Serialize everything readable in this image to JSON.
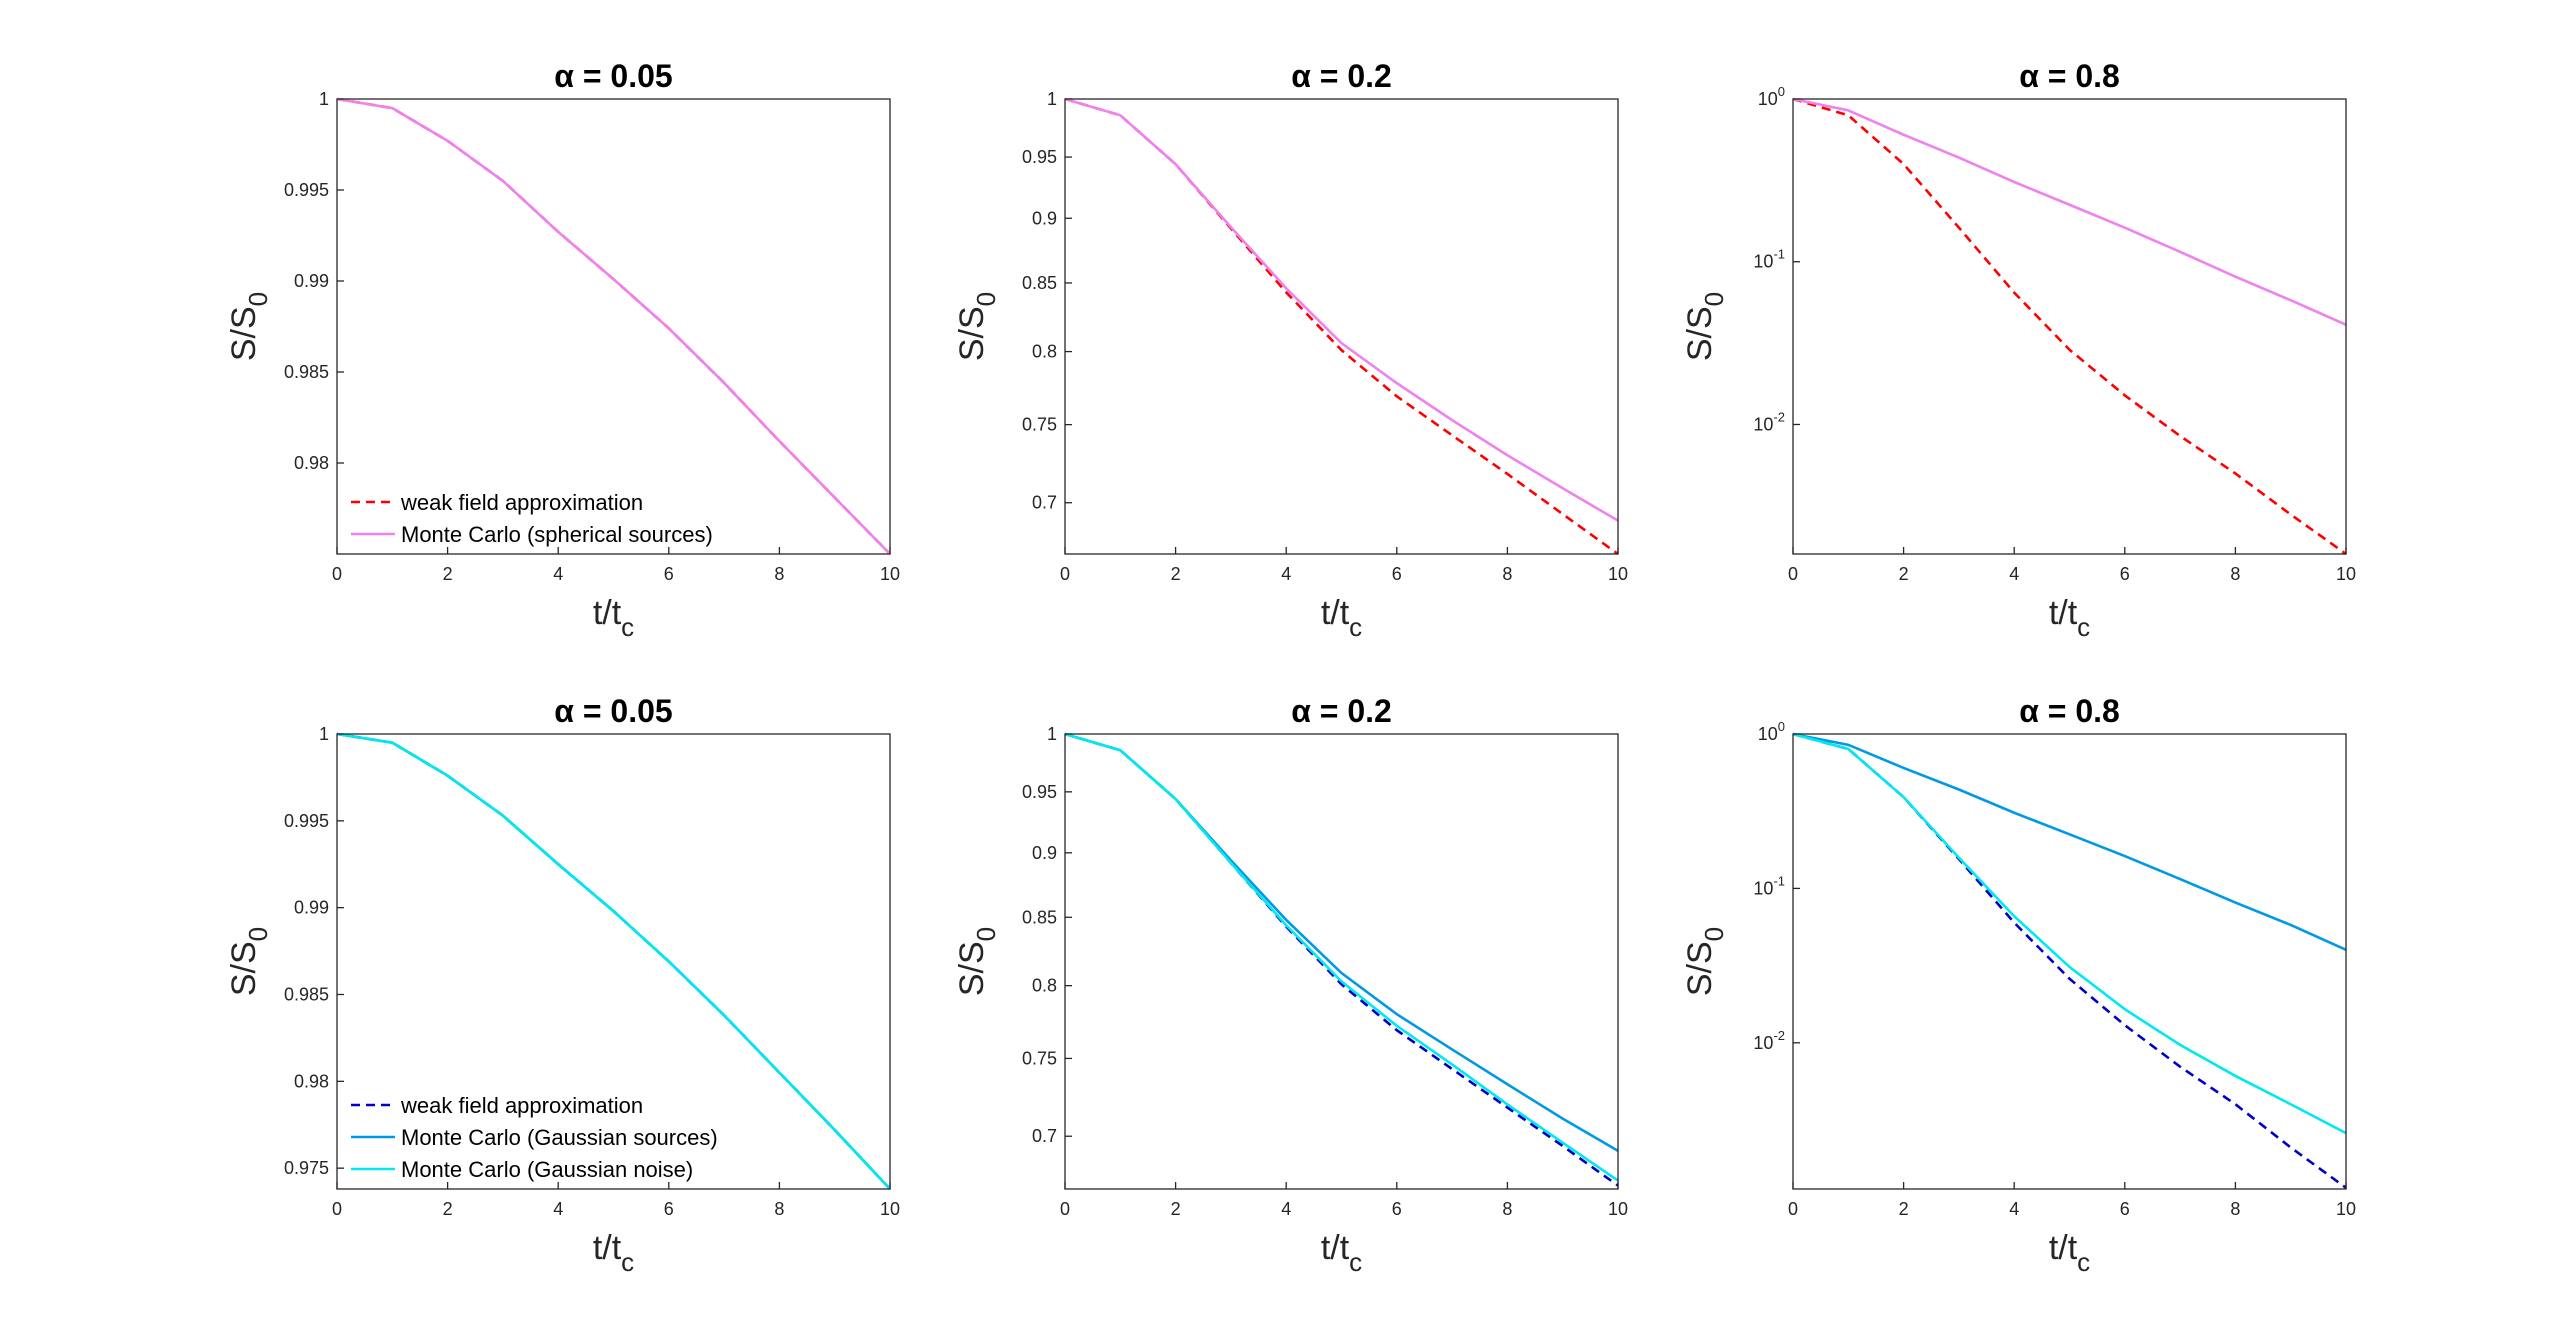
{
  "chart_data": [
    {
      "type": "line",
      "title": "α = 0.05",
      "xlabel": "t/t",
      "xlabel_subscript": "c",
      "ylabel": "S/S",
      "ylabel_subscript": "0",
      "x": [
        0,
        1,
        2,
        3,
        4,
        5,
        6,
        7,
        8,
        9,
        10
      ],
      "xlim": [
        0,
        10
      ],
      "xticks": [
        0,
        2,
        4,
        6,
        8,
        10
      ],
      "ylim": [
        0.975,
        1
      ],
      "yticks": [
        0.98,
        0.985,
        0.99,
        0.995,
        1
      ],
      "log_y": false,
      "legend": "lower left",
      "series": [
        {
          "name": "weak field approximation",
          "color": "#ff0000",
          "dash": true,
          "values": [
            1,
            0.9995,
            0.9977,
            0.9955,
            0.9927,
            0.9901,
            0.9874,
            0.9844,
            0.9812,
            0.9781,
            0.975
          ]
        },
        {
          "name": "Monte Carlo (spherical sources)",
          "color": "#ee82ee",
          "dash": false,
          "values": [
            1,
            0.9995,
            0.9977,
            0.9955,
            0.9927,
            0.9901,
            0.9874,
            0.9844,
            0.9812,
            0.9781,
            0.975
          ]
        }
      ]
    },
    {
      "type": "line",
      "title": "α = 0.2",
      "xlabel": "t/t",
      "xlabel_subscript": "c",
      "ylabel": "S/S",
      "ylabel_subscript": "0",
      "x": [
        0,
        1,
        2,
        3,
        4,
        5,
        6,
        7,
        8,
        9,
        10
      ],
      "xlim": [
        0,
        10
      ],
      "xticks": [
        0,
        2,
        4,
        6,
        8,
        10
      ],
      "ylim": [
        0.669,
        1
      ],
      "yticks": [
        0.7,
        0.75,
        0.8,
        0.85,
        0.9,
        0.95,
        1
      ],
      "log_y": true,
      "series": [
        {
          "color": "#ff0000",
          "dash": true,
          "values": [
            1,
            0.9857,
            0.944,
            0.892,
            0.843,
            0.801,
            0.769,
            0.743,
            0.718,
            0.693,
            0.669
          ]
        },
        {
          "color": "#ee82ee",
          "dash": false,
          "values": [
            1,
            0.9857,
            0.944,
            0.893,
            0.846,
            0.806,
            0.778,
            0.753,
            0.73,
            0.709,
            0.689
          ]
        }
      ]
    },
    {
      "type": "line",
      "title": "α = 0.8",
      "xlabel": "t/t",
      "xlabel_subscript": "c",
      "ylabel": "S/S",
      "ylabel_subscript": "0",
      "x": [
        0,
        1,
        2,
        3,
        4,
        5,
        6,
        7,
        8,
        9,
        10
      ],
      "xlim": [
        0,
        10
      ],
      "xticks": [
        0,
        2,
        4,
        6,
        8,
        10
      ],
      "ylim": [
        0.0016,
        1
      ],
      "yticks": [
        {
          "value": 0.01,
          "label": "10",
          "exponent": "-2"
        },
        {
          "value": 0.1,
          "label": "10",
          "exponent": "-1"
        },
        {
          "value": 1,
          "label": "10",
          "exponent": "0"
        }
      ],
      "log_y": true,
      "series": [
        {
          "color": "#ff0000",
          "dash": true,
          "values": [
            1,
            0.794,
            0.398,
            0.162,
            0.0646,
            0.0288,
            0.0151,
            0.0085,
            0.005,
            0.0028,
            0.0016
          ]
        },
        {
          "color": "#ee82ee",
          "dash": false,
          "values": [
            1,
            0.851,
            0.603,
            0.437,
            0.309,
            0.224,
            0.162,
            0.115,
            0.081,
            0.058,
            0.041
          ]
        }
      ]
    },
    {
      "type": "line",
      "title": "α = 0.05",
      "xlabel": "t/t",
      "xlabel_subscript": "c",
      "ylabel": "S/S",
      "ylabel_subscript": "0",
      "x": [
        0,
        1,
        2,
        3,
        4,
        5,
        6,
        7,
        8,
        9,
        10
      ],
      "xlim": [
        0,
        10
      ],
      "xticks": [
        0,
        2,
        4,
        6,
        8,
        10
      ],
      "ylim": [
        0.9738,
        1
      ],
      "yticks": [
        0.975,
        0.98,
        0.985,
        0.99,
        0.995,
        1
      ],
      "log_y": false,
      "legend": "lower left",
      "series": [
        {
          "name": "weak field approximation",
          "color": "#0000cc",
          "dash": true,
          "values": [
            1,
            0.9995,
            0.9976,
            0.9953,
            0.9925,
            0.9898,
            0.9869,
            0.9838,
            0.9805,
            0.9772,
            0.9738
          ]
        },
        {
          "name": "Monte Carlo (Gaussian sources)",
          "color": "#0099e6",
          "dash": false,
          "values": [
            1,
            0.9995,
            0.9976,
            0.9953,
            0.9925,
            0.9898,
            0.9869,
            0.9838,
            0.9805,
            0.9772,
            0.9738
          ]
        },
        {
          "name": "Monte Carlo (Gaussian noise)",
          "color": "#00e8f0",
          "dash": false,
          "values": [
            1,
            0.9995,
            0.9976,
            0.9953,
            0.9925,
            0.9898,
            0.9869,
            0.9838,
            0.9805,
            0.9772,
            0.9738
          ]
        }
      ]
    },
    {
      "type": "line",
      "title": "α = 0.2",
      "xlabel": "t/t",
      "xlabel_subscript": "c",
      "ylabel": "S/S",
      "ylabel_subscript": "0",
      "x": [
        0,
        1,
        2,
        3,
        4,
        5,
        6,
        7,
        8,
        9,
        10
      ],
      "xlim": [
        0,
        10
      ],
      "xticks": [
        0,
        2,
        4,
        6,
        8,
        10
      ],
      "ylim": [
        0.668,
        1
      ],
      "yticks": [
        0.7,
        0.75,
        0.8,
        0.85,
        0.9,
        0.95,
        1
      ],
      "log_y": true,
      "series": [
        {
          "color": "#0000cc",
          "dash": true,
          "values": [
            1,
            0.9857,
            0.944,
            0.892,
            0.843,
            0.801,
            0.769,
            0.743,
            0.718,
            0.694,
            0.67
          ]
        },
        {
          "color": "#0099e6",
          "dash": false,
          "values": [
            1,
            0.9857,
            0.944,
            0.894,
            0.848,
            0.809,
            0.78,
            0.756,
            0.733,
            0.711,
            0.691
          ]
        },
        {
          "color": "#00e8f0",
          "dash": false,
          "values": [
            1,
            0.9857,
            0.944,
            0.892,
            0.844,
            0.803,
            0.772,
            0.746,
            0.72,
            0.696,
            0.673
          ]
        }
      ]
    },
    {
      "type": "line",
      "title": "α = 0.8",
      "xlabel": "t/t",
      "xlabel_subscript": "c",
      "ylabel": "S/S",
      "ylabel_subscript": "0",
      "x": [
        0,
        1,
        2,
        3,
        4,
        5,
        6,
        7,
        8,
        9,
        10
      ],
      "xlim": [
        0,
        10
      ],
      "xticks": [
        0,
        2,
        4,
        6,
        8,
        10
      ],
      "ylim": [
        0.00113,
        1
      ],
      "yticks": [
        {
          "value": 0.01,
          "label": "10",
          "exponent": "-2"
        },
        {
          "value": 0.1,
          "label": "10",
          "exponent": "-1"
        },
        {
          "value": 1,
          "label": "10",
          "exponent": "0"
        }
      ],
      "log_y": true,
      "series": [
        {
          "color": "#0000cc",
          "dash": true,
          "values": [
            1,
            0.8,
            0.39,
            0.155,
            0.06,
            0.026,
            0.013,
            0.007,
            0.004,
            0.0021,
            0.00115
          ]
        },
        {
          "color": "#0099e6",
          "dash": false,
          "values": [
            1,
            0.851,
            0.603,
            0.437,
            0.309,
            0.224,
            0.162,
            0.115,
            0.081,
            0.058,
            0.04
          ]
        },
        {
          "color": "#00e8f0",
          "dash": false,
          "values": [
            1,
            0.8,
            0.39,
            0.158,
            0.066,
            0.031,
            0.0165,
            0.0097,
            0.0061,
            0.004,
            0.0026
          ]
        }
      ]
    }
  ]
}
